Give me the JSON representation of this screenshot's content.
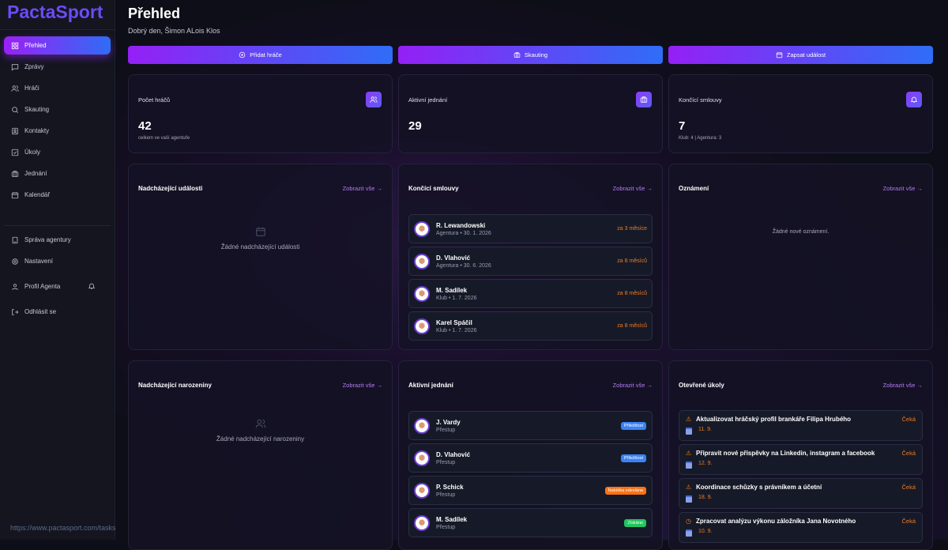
{
  "app": {
    "logo": "PactaSport",
    "url": "https://www.pactasport.com/tasks"
  },
  "sidebar": {
    "items": [
      {
        "label": "Přehled",
        "icon": "dashboard-icon",
        "active": true
      },
      {
        "label": "Zprávy",
        "icon": "message-icon"
      },
      {
        "label": "Hráči",
        "icon": "users-icon"
      },
      {
        "label": "Skauting",
        "icon": "search-icon"
      },
      {
        "label": "Kontakty",
        "icon": "contact-icon"
      },
      {
        "label": "Úkoly",
        "icon": "checkbox-icon"
      },
      {
        "label": "Jednání",
        "icon": "briefcase-icon"
      },
      {
        "label": "Kalendář",
        "icon": "calendar-icon"
      }
    ],
    "bottom": [
      {
        "label": "Správa agentury",
        "icon": "building-icon"
      },
      {
        "label": "Nastavení",
        "icon": "gear-icon"
      },
      {
        "label": "Profil Agenta",
        "icon": "user-icon"
      },
      {
        "label": "Odhlásit se",
        "icon": "logout-icon"
      }
    ]
  },
  "header": {
    "title": "Přehled",
    "greeting": "Dobrý den, Šimon ALois Klos"
  },
  "actions": [
    {
      "label": "Přidat hráče",
      "icon": "plus-circle-icon"
    },
    {
      "label": "Skauting",
      "icon": "briefcase-icon"
    },
    {
      "label": "Zapsat událost",
      "icon": "calendar-icon"
    }
  ],
  "stats": [
    {
      "label": "Počet hráčů",
      "value": "42",
      "sub": "celkem ve vaší agentuře",
      "icon": "users-icon"
    },
    {
      "label": "Aktivní jednání",
      "value": "29",
      "sub": "",
      "icon": "briefcase-icon"
    },
    {
      "label": "Končící smlouvy",
      "value": "7",
      "sub": "Klub: 4 | Agentura: 3",
      "icon": "bell-icon"
    }
  ],
  "view_all": "Zobrazit vše →",
  "events": {
    "title": "Nadcházející události",
    "empty": "Žádné nadcházející události"
  },
  "contracts": {
    "title": "Končící smlouvy",
    "items": [
      {
        "name": "R. Lewandowski",
        "sub": "Agentura • 30. 1. 2026",
        "due": "za 3 měsíce"
      },
      {
        "name": "D. Vlahović",
        "sub": "Agentura • 30. 6. 2026",
        "due": "za 8 měsíců"
      },
      {
        "name": "M. Sadílek",
        "sub": "Klub • 1. 7. 2026",
        "due": "za 8 měsíců"
      },
      {
        "name": "Karel Spáčil",
        "sub": "Klub • 1. 7. 2026",
        "due": "za 8 měsíců"
      }
    ]
  },
  "announcements": {
    "title": "Oznámení",
    "empty": "Žádné nové oznámení."
  },
  "birthdays": {
    "title": "Nadcházející narozeniny",
    "empty": "Žádné nadcházející narozeniny"
  },
  "negotiations": {
    "title": "Aktivní jednání",
    "items": [
      {
        "name": "J. Vardy",
        "sub": "Přestup",
        "status": "Příležitost",
        "color": "#3b82f6"
      },
      {
        "name": "D. Vlahović",
        "sub": "Přestup",
        "status": "Příležitost",
        "color": "#3b82f6"
      },
      {
        "name": "P. Schick",
        "sub": "Přestup",
        "status": "Nabídka odeslána",
        "color": "#f97316"
      },
      {
        "name": "M. Sadílek",
        "sub": "Přestup",
        "status": "Získáno",
        "color": "#22c55e"
      }
    ]
  },
  "tasks": {
    "title": "Otevřené úkoly",
    "items": [
      {
        "title": "Aktualizovat hráčský profil brankáře Filipa Hrubého",
        "date": "11. 9.",
        "status": "Čeká",
        "icon": "warning-icon"
      },
      {
        "title": "Připravit nové příspěvky na Linkedin, instagram a facebook",
        "date": "12. 9.",
        "status": "Čeká",
        "icon": "warning-icon"
      },
      {
        "title": "Koordinace schůzky s právníkem a účetní",
        "date": "18. 9.",
        "status": "Čeká",
        "icon": "warning-icon"
      },
      {
        "title": "Zpracovat analýzu výkonu záložníka Jana Novotného",
        "date": "10. 9.",
        "status": "Čeká",
        "icon": "clock-icon"
      }
    ]
  }
}
